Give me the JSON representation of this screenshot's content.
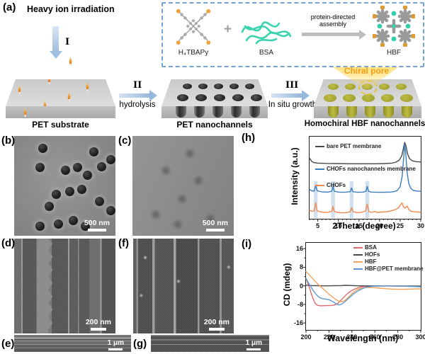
{
  "panel_a": {
    "label": "(a)",
    "title": "Heavy ion irradiation",
    "steps": {
      "s1": "I",
      "s2": "II",
      "s2_caption": "hydrolysis",
      "s3": "III",
      "s3_caption": "In situ growth"
    },
    "slab1_label": "PET substrate",
    "slab2_label": "PET nanochannels",
    "slab3_label": "Homochiral HBF nanochannels",
    "chiral_pore": "Chiral pore",
    "inset": {
      "molecule": "H₄TBAPy",
      "plus": "+",
      "protein": "BSA",
      "arrow_line1": "protein-directed",
      "arrow_line2": "assembly",
      "product": "HBF"
    }
  },
  "sem": {
    "b": {
      "label": "(b)",
      "scalebar": "500 nm"
    },
    "c": {
      "label": "(c)",
      "scalebar": "500 nm"
    },
    "d": {
      "label": "(d)",
      "scalebar": "200 nm"
    },
    "f": {
      "label": "(f)",
      "scalebar": "200 nm"
    },
    "e": {
      "label": "(e)",
      "scalebar": "1 μm"
    },
    "g": {
      "label": "(g)",
      "scalebar": "1 μm"
    }
  },
  "chart_data": [
    {
      "panel_label": "(h)",
      "type": "line",
      "xlabel": "2Theta (degree)",
      "ylabel": "Intensity (a.u.)",
      "xlim": [
        3,
        30
      ],
      "ylim": [
        0,
        10
      ],
      "xticks": [
        5,
        10,
        15,
        20,
        25,
        30
      ],
      "xminor_step": 1,
      "legend_position": "inside-left",
      "highlight_bands_x": [
        4.5,
        8.7,
        13.2,
        17
      ],
      "highlight_band_y": [
        0.1,
        4.6
      ],
      "highlight_color": "#b7d0e8",
      "series": [
        {
          "name": "bare PET membrane",
          "color": "#4a4a4a",
          "points": [
            [
              3,
              7.35
            ],
            [
              3.5,
              7.0
            ],
            [
              4,
              6.85
            ],
            [
              5,
              6.78
            ],
            [
              7,
              6.74
            ],
            [
              10,
              6.72
            ],
            [
              13,
              6.7
            ],
            [
              16,
              6.7
            ],
            [
              19,
              6.7
            ],
            [
              21,
              6.72
            ],
            [
              23,
              6.78
            ],
            [
              24,
              6.9
            ],
            [
              24.8,
              7.15
            ],
            [
              25.4,
              7.7
            ],
            [
              25.8,
              8.6
            ],
            [
              26.1,
              9.3
            ],
            [
              26.4,
              8.9
            ],
            [
              26.8,
              7.9
            ],
            [
              27.3,
              7.3
            ],
            [
              28,
              7.05
            ],
            [
              29,
              6.95
            ],
            [
              30,
              6.92
            ]
          ]
        },
        {
          "name": "CHOFs nanochannels membrane",
          "color": "#3b7ec0",
          "points": [
            [
              3,
              3.55
            ],
            [
              3.6,
              3.4
            ],
            [
              4.1,
              3.35
            ],
            [
              4.35,
              3.8
            ],
            [
              4.5,
              4.05
            ],
            [
              4.65,
              3.75
            ],
            [
              4.9,
              3.4
            ],
            [
              6,
              3.28
            ],
            [
              7.5,
              3.25
            ],
            [
              8.4,
              3.35
            ],
            [
              8.7,
              3.95
            ],
            [
              9,
              3.35
            ],
            [
              10,
              3.25
            ],
            [
              11.5,
              3.22
            ],
            [
              12.9,
              3.3
            ],
            [
              13.2,
              3.75
            ],
            [
              13.5,
              3.3
            ],
            [
              14.5,
              3.22
            ],
            [
              16,
              3.25
            ],
            [
              16.7,
              3.35
            ],
            [
              17,
              3.95
            ],
            [
              17.3,
              3.35
            ],
            [
              18,
              3.25
            ],
            [
              19.5,
              3.22
            ],
            [
              21,
              3.22
            ],
            [
              22.5,
              3.25
            ],
            [
              23.5,
              3.3
            ],
            [
              24.3,
              3.45
            ],
            [
              25,
              3.9
            ],
            [
              25.5,
              5.2
            ],
            [
              25.9,
              7.8
            ],
            [
              26.1,
              9.05
            ],
            [
              26.35,
              8.0
            ],
            [
              26.7,
              5.6
            ],
            [
              27.1,
              4.3
            ],
            [
              27.6,
              3.7
            ],
            [
              28.2,
              3.45
            ],
            [
              29,
              3.38
            ],
            [
              30,
              3.35
            ]
          ]
        },
        {
          "name": "CHOFs",
          "color": "#ee8a50",
          "points": [
            [
              3,
              1.05
            ],
            [
              3.6,
              0.9
            ],
            [
              4.1,
              0.95
            ],
            [
              4.5,
              1.95
            ],
            [
              4.8,
              1.0
            ],
            [
              5.5,
              0.85
            ],
            [
              6.5,
              0.78
            ],
            [
              7.5,
              0.8
            ],
            [
              8.4,
              0.9
            ],
            [
              8.7,
              1.5
            ],
            [
              9,
              0.9
            ],
            [
              9.8,
              0.78
            ],
            [
              10.8,
              0.72
            ],
            [
              11.8,
              0.75
            ],
            [
              12.9,
              0.85
            ],
            [
              13.2,
              1.35
            ],
            [
              13.6,
              0.85
            ],
            [
              14.5,
              0.75
            ],
            [
              15.5,
              0.78
            ],
            [
              16.6,
              0.95
            ],
            [
              17,
              1.8
            ],
            [
              17.4,
              0.9
            ],
            [
              18,
              0.78
            ],
            [
              18.8,
              0.88
            ],
            [
              19.5,
              0.78
            ],
            [
              20.5,
              0.82
            ],
            [
              21.5,
              0.85
            ],
            [
              22.3,
              0.9
            ],
            [
              23,
              1.0
            ],
            [
              23.8,
              1.1
            ],
            [
              24.5,
              1.3
            ],
            [
              25.1,
              1.7
            ],
            [
              25.45,
              1.95
            ],
            [
              25.8,
              1.45
            ],
            [
              26.2,
              1.3
            ],
            [
              26.7,
              1.55
            ],
            [
              27.1,
              1.15
            ],
            [
              27.7,
              0.9
            ],
            [
              28.5,
              0.85
            ],
            [
              29.2,
              0.82
            ],
            [
              30,
              0.8
            ]
          ]
        }
      ]
    },
    {
      "panel_label": "(i)",
      "type": "line",
      "xlabel": "Wavelength (nm)",
      "ylabel": "CD (mdeg)",
      "xlim": [
        200,
        300
      ],
      "ylim": [
        -19,
        18.5
      ],
      "xticks": [
        200,
        220,
        240,
        260,
        280,
        300
      ],
      "xminor_step": 10,
      "yticks": [
        16,
        8,
        0,
        -8,
        -16
      ],
      "yminor_step": 4,
      "yminor_start": -16,
      "legend_position": "top-right",
      "series": [
        {
          "name": "BSA",
          "color": "#e5696c",
          "points": [
            [
              200,
              3.0
            ],
            [
              201,
              1.8
            ],
            [
              202,
              0.6
            ],
            [
              203,
              -0.8
            ],
            [
              204,
              -2.4
            ],
            [
              206,
              -5.4
            ],
            [
              208,
              -7.6
            ],
            [
              210,
              -8.4
            ],
            [
              213,
              -8.6
            ],
            [
              216,
              -8.55
            ],
            [
              219,
              -8.5
            ],
            [
              222,
              -8.45
            ],
            [
              224,
              -8.35
            ],
            [
              226,
              -8.1
            ],
            [
              228,
              -7.4
            ],
            [
              230,
              -6.4
            ],
            [
              233,
              -4.9
            ],
            [
              236,
              -3.4
            ],
            [
              239,
              -2.3
            ],
            [
              242,
              -1.5
            ],
            [
              245,
              -0.9
            ],
            [
              248,
              -0.5
            ],
            [
              251,
              -0.25
            ],
            [
              255,
              -0.15
            ],
            [
              260,
              -0.1
            ],
            [
              270,
              -0.1
            ],
            [
              280,
              -0.12
            ],
            [
              290,
              -0.15
            ],
            [
              300,
              -0.2
            ]
          ]
        },
        {
          "name": "HOFs",
          "color": "#4a4a4a",
          "points": [
            [
              200,
              0.3
            ],
            [
              205,
              0.1
            ],
            [
              210,
              0.05
            ],
            [
              215,
              0
            ],
            [
              220,
              0
            ],
            [
              225,
              0.05
            ],
            [
              230,
              0.1
            ],
            [
              234,
              0.2
            ],
            [
              238,
              0.15
            ],
            [
              242,
              0.05
            ],
            [
              246,
              0
            ],
            [
              252,
              -0.05
            ],
            [
              260,
              -0.05
            ],
            [
              270,
              -0.05
            ],
            [
              280,
              -0.08
            ],
            [
              290,
              -0.1
            ],
            [
              300,
              -0.12
            ]
          ]
        },
        {
          "name": "HBF",
          "color": "#f3a25b",
          "points": [
            [
              200,
              6.2
            ],
            [
              202,
              5.2
            ],
            [
              204,
              4.1
            ],
            [
              206,
              3.0
            ],
            [
              208,
              1.9
            ],
            [
              210,
              0.9
            ],
            [
              212,
              0
            ],
            [
              214,
              -0.9
            ],
            [
              216,
              -1.8
            ],
            [
              218,
              -2.7
            ],
            [
              220,
              -3.6
            ],
            [
              222,
              -4.4
            ],
            [
              224,
              -5.2
            ],
            [
              226,
              -5.9
            ],
            [
              228,
              -6.5
            ],
            [
              230,
              -6.85
            ],
            [
              232,
              -6.8
            ],
            [
              234,
              -6.3
            ],
            [
              236,
              -5.4
            ],
            [
              238,
              -4.4
            ],
            [
              240,
              -3.4
            ],
            [
              242,
              -2.6
            ],
            [
              244,
              -1.9
            ],
            [
              246,
              -1.4
            ],
            [
              248,
              -1.1
            ],
            [
              250,
              -0.9
            ],
            [
              253,
              -0.75
            ],
            [
              256,
              -0.7
            ],
            [
              260,
              -0.8
            ],
            [
              264,
              -1.0
            ],
            [
              268,
              -1.2
            ],
            [
              272,
              -1.35
            ],
            [
              276,
              -1.45
            ],
            [
              280,
              -1.5
            ],
            [
              284,
              -1.5
            ],
            [
              288,
              -1.45
            ],
            [
              292,
              -1.4
            ],
            [
              296,
              -1.35
            ],
            [
              300,
              -1.3
            ]
          ]
        },
        {
          "name": "HBF@PET membrane",
          "color": "#5b9bd5",
          "points": [
            [
              200,
              3.2
            ],
            [
              201,
              2.3
            ],
            [
              202,
              1.4
            ],
            [
              203,
              0.6
            ],
            [
              204,
              -0.2
            ],
            [
              206,
              -1.8
            ],
            [
              208,
              -3.2
            ],
            [
              210,
              -4.3
            ],
            [
              212,
              -5.1
            ],
            [
              214,
              -5.5
            ],
            [
              216,
              -5.65
            ],
            [
              218,
              -5.8
            ],
            [
              220,
              -6.0
            ],
            [
              222,
              -6.4
            ],
            [
              224,
              -7.0
            ],
            [
              226,
              -7.7
            ],
            [
              228,
              -8.2
            ],
            [
              230,
              -8.15
            ],
            [
              232,
              -7.6
            ],
            [
              234,
              -6.8
            ],
            [
              236,
              -5.9
            ],
            [
              238,
              -5.0
            ],
            [
              240,
              -4.1
            ],
            [
              242,
              -3.3
            ],
            [
              244,
              -2.6
            ],
            [
              246,
              -2.0
            ],
            [
              248,
              -1.5
            ],
            [
              250,
              -1.05
            ],
            [
              252,
              -0.7
            ],
            [
              255,
              -0.4
            ],
            [
              258,
              -0.2
            ],
            [
              262,
              -0.1
            ],
            [
              266,
              -0.05
            ],
            [
              270,
              -0.05
            ],
            [
              275,
              -0.05
            ],
            [
              280,
              -0.1
            ],
            [
              285,
              -0.15
            ],
            [
              290,
              -0.25
            ],
            [
              295,
              -0.35
            ],
            [
              300,
              -0.45
            ]
          ]
        }
      ]
    }
  ]
}
